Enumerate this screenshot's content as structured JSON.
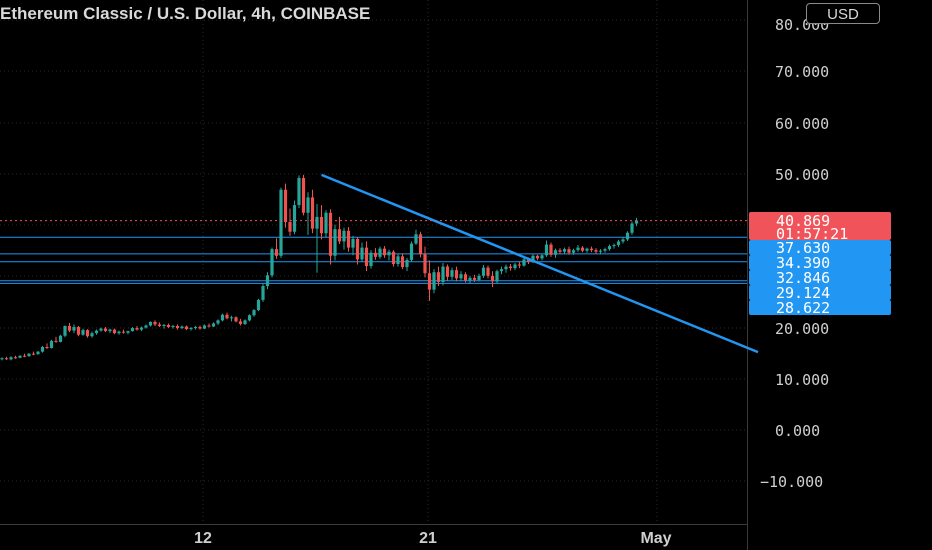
{
  "header": {
    "title": "Ethereum Classic / U.S. Dollar, 4h, COINBASE",
    "currency": "USD"
  },
  "colors": {
    "background": "#000000",
    "grid": "#2a2a2a",
    "up": "#26a69a",
    "down": "#ef5350",
    "trendline": "#2196f3",
    "level_line": "#2196f3",
    "price_tag": "#f0545a",
    "level_tag": "#2196f3"
  },
  "chart_data": {
    "type": "candlestick",
    "y_axis": {
      "ticks": [
        "80.000",
        "70.000",
        "60.000",
        "50.000",
        "20.000",
        "10.000",
        "0.000",
        "−10.000"
      ],
      "tick_values": [
        80,
        70,
        60,
        50,
        20,
        10,
        0,
        -10
      ],
      "ylim": [
        -14,
        82
      ]
    },
    "x_axis": {
      "ticks": [
        "12",
        "21",
        "May"
      ],
      "tick_index": [
        44,
        94,
        147
      ]
    },
    "last_price": {
      "value": 40.869,
      "label": "40.869",
      "countdown": "01:57:21"
    },
    "levels": [
      {
        "value": 37.63,
        "label": "37.630"
      },
      {
        "value": 34.39,
        "label": "34.390"
      },
      {
        "value": 32.846,
        "label": "32.846"
      },
      {
        "value": 29.124,
        "label": "29.124"
      },
      {
        "value": 28.622,
        "label": "28.622"
      }
    ],
    "trendline": {
      "start": {
        "index": 71,
        "value": 49.8
      },
      "end": {
        "index": 168,
        "value": 15.2
      }
    },
    "candles": [
      [
        13.9,
        14.2,
        13.6,
        14.0
      ],
      [
        14.0,
        14.3,
        13.7,
        13.8
      ],
      [
        13.8,
        14.4,
        13.6,
        14.2
      ],
      [
        14.2,
        14.5,
        13.9,
        14.1
      ],
      [
        14.1,
        14.6,
        14.0,
        14.5
      ],
      [
        14.5,
        14.9,
        14.2,
        14.4
      ],
      [
        14.4,
        15.0,
        14.3,
        14.9
      ],
      [
        14.9,
        15.3,
        14.6,
        14.8
      ],
      [
        14.8,
        15.4,
        14.7,
        15.3
      ],
      [
        15.3,
        16.4,
        15.1,
        16.2
      ],
      [
        16.2,
        16.9,
        15.8,
        16.0
      ],
      [
        16.0,
        17.6,
        15.9,
        17.4
      ],
      [
        17.4,
        18.2,
        17.0,
        17.2
      ],
      [
        17.2,
        18.6,
        17.1,
        18.4
      ],
      [
        18.4,
        20.4,
        18.1,
        20.3
      ],
      [
        20.3,
        20.9,
        19.1,
        19.4
      ],
      [
        19.4,
        20.6,
        18.9,
        20.1
      ],
      [
        20.1,
        20.3,
        18.3,
        18.6
      ],
      [
        18.6,
        19.8,
        18.4,
        19.5
      ],
      [
        19.5,
        19.7,
        18.0,
        18.3
      ],
      [
        18.3,
        19.2,
        18.0,
        18.9
      ],
      [
        18.9,
        19.6,
        18.6,
        19.4
      ],
      [
        19.4,
        20.0,
        19.2,
        19.8
      ],
      [
        19.8,
        20.1,
        19.1,
        19.3
      ],
      [
        19.3,
        19.8,
        18.9,
        19.6
      ],
      [
        19.6,
        19.8,
        18.7,
        18.9
      ],
      [
        18.9,
        19.4,
        18.6,
        19.2
      ],
      [
        19.2,
        19.6,
        18.8,
        19.0
      ],
      [
        19.0,
        19.4,
        18.7,
        19.3
      ],
      [
        19.3,
        20.1,
        19.2,
        19.9
      ],
      [
        19.9,
        20.3,
        19.4,
        19.6
      ],
      [
        19.6,
        20.2,
        19.3,
        20.0
      ],
      [
        20.0,
        20.6,
        19.8,
        20.4
      ],
      [
        20.4,
        21.2,
        20.2,
        21.1
      ],
      [
        21.1,
        21.4,
        20.3,
        20.6
      ],
      [
        20.6,
        21.0,
        20.1,
        20.3
      ],
      [
        20.3,
        20.7,
        19.8,
        20.5
      ],
      [
        20.5,
        20.8,
        19.9,
        20.1
      ],
      [
        20.1,
        20.5,
        19.8,
        20.3
      ],
      [
        20.3,
        20.6,
        19.6,
        19.9
      ],
      [
        19.9,
        20.4,
        19.7,
        20.2
      ],
      [
        20.2,
        20.4,
        19.5,
        19.7
      ],
      [
        19.7,
        20.1,
        19.4,
        19.9
      ],
      [
        19.9,
        20.3,
        19.6,
        20.1
      ],
      [
        20.1,
        20.4,
        19.6,
        19.8
      ],
      [
        19.8,
        20.6,
        19.7,
        20.4
      ],
      [
        20.4,
        20.8,
        20.0,
        20.2
      ],
      [
        20.2,
        21.0,
        20.1,
        20.8
      ],
      [
        20.8,
        21.6,
        20.5,
        21.4
      ],
      [
        21.4,
        22.7,
        21.2,
        22.5
      ],
      [
        22.5,
        22.9,
        21.6,
        21.8
      ],
      [
        21.8,
        22.3,
        21.2,
        22.0
      ],
      [
        22.0,
        22.2,
        21.0,
        21.2
      ],
      [
        21.2,
        21.7,
        20.4,
        20.7
      ],
      [
        20.7,
        21.6,
        20.5,
        21.4
      ],
      [
        21.4,
        22.6,
        21.2,
        22.4
      ],
      [
        22.4,
        23.6,
        22.1,
        23.4
      ],
      [
        23.4,
        25.6,
        23.2,
        25.4
      ],
      [
        25.4,
        28.5,
        25.0,
        28.1
      ],
      [
        28.1,
        30.8,
        27.5,
        30.2
      ],
      [
        30.2,
        35.6,
        29.8,
        35.3
      ],
      [
        35.3,
        37.4,
        33.4,
        34.0
      ],
      [
        34.0,
        47.3,
        33.6,
        46.9
      ],
      [
        46.9,
        48.1,
        39.5,
        40.6
      ],
      [
        40.6,
        43.2,
        37.9,
        38.7
      ],
      [
        38.7,
        44.8,
        38.2,
        43.9
      ],
      [
        43.9,
        49.7,
        43.3,
        49.2
      ],
      [
        49.2,
        49.8,
        41.9,
        42.4
      ],
      [
        42.4,
        46.4,
        38.1,
        45.4
      ],
      [
        45.4,
        46.9,
        38.4,
        39.3
      ],
      [
        39.3,
        44.1,
        30.7,
        41.6
      ],
      [
        41.6,
        43.9,
        37.2,
        38.4
      ],
      [
        38.4,
        42.9,
        37.6,
        42.4
      ],
      [
        42.4,
        43.1,
        32.3,
        34.0
      ],
      [
        34.0,
        40.1,
        33.1,
        39.2
      ],
      [
        39.2,
        41.6,
        36.3,
        36.8
      ],
      [
        36.8,
        39.5,
        35.2,
        38.9
      ],
      [
        38.9,
        39.6,
        34.8,
        35.6
      ],
      [
        35.6,
        37.9,
        34.1,
        37.3
      ],
      [
        37.3,
        37.6,
        32.3,
        33.3
      ],
      [
        33.3,
        36.6,
        32.9,
        35.6
      ],
      [
        35.6,
        36.8,
        31.0,
        32.0
      ],
      [
        32.0,
        35.1,
        31.5,
        34.6
      ],
      [
        34.6,
        35.5,
        33.2,
        33.8
      ],
      [
        33.8,
        35.8,
        33.4,
        35.4
      ],
      [
        35.4,
        35.9,
        33.6,
        34.1
      ],
      [
        34.1,
        35.2,
        33.1,
        34.8
      ],
      [
        34.8,
        35.1,
        31.9,
        32.4
      ],
      [
        32.4,
        34.4,
        31.9,
        33.9
      ],
      [
        33.9,
        34.5,
        31.4,
        31.8
      ],
      [
        31.8,
        33.6,
        31.0,
        33.2
      ],
      [
        33.2,
        36.8,
        32.8,
        36.4
      ],
      [
        36.4,
        39.1,
        36.1,
        38.2
      ],
      [
        38.2,
        38.7,
        33.7,
        34.3
      ],
      [
        34.3,
        35.8,
        29.8,
        30.6
      ],
      [
        30.6,
        33.1,
        25.2,
        27.4
      ],
      [
        27.4,
        31.4,
        26.7,
        30.8
      ],
      [
        30.8,
        31.9,
        28.1,
        28.9
      ],
      [
        28.9,
        32.6,
        28.2,
        31.9
      ],
      [
        31.9,
        32.3,
        29.1,
        29.9
      ],
      [
        29.9,
        31.7,
        29.3,
        31.2
      ],
      [
        31.2,
        31.9,
        29.0,
        29.6
      ],
      [
        29.6,
        31.0,
        29.0,
        30.4
      ],
      [
        30.4,
        30.8,
        28.8,
        29.2
      ],
      [
        29.2,
        30.1,
        28.5,
        29.7
      ],
      [
        29.7,
        30.3,
        28.9,
        29.3
      ],
      [
        29.3,
        30.5,
        29.0,
        30.1
      ],
      [
        30.1,
        32.2,
        29.7,
        31.7
      ],
      [
        31.7,
        32.1,
        29.6,
        30.1
      ],
      [
        30.1,
        31.0,
        27.9,
        29.0
      ],
      [
        29.0,
        31.3,
        28.6,
        31.0
      ],
      [
        31.0,
        31.9,
        30.4,
        31.4
      ],
      [
        31.4,
        32.3,
        30.7,
        31.9
      ],
      [
        31.9,
        32.4,
        31.1,
        31.6
      ],
      [
        31.6,
        32.6,
        31.2,
        32.3
      ],
      [
        32.3,
        32.8,
        31.6,
        32.1
      ],
      [
        32.1,
        33.6,
        31.9,
        33.3
      ],
      [
        33.3,
        33.7,
        32.4,
        32.9
      ],
      [
        32.9,
        34.3,
        32.6,
        34.0
      ],
      [
        34.0,
        34.2,
        33.1,
        33.5
      ],
      [
        33.5,
        34.4,
        33.1,
        34.1
      ],
      [
        34.1,
        37.0,
        33.8,
        36.2
      ],
      [
        36.2,
        36.6,
        33.8,
        34.2
      ],
      [
        34.2,
        35.4,
        33.6,
        35.1
      ],
      [
        35.1,
        35.5,
        34.4,
        34.8
      ],
      [
        34.8,
        35.6,
        34.3,
        35.3
      ],
      [
        35.3,
        35.8,
        34.2,
        34.6
      ],
      [
        34.6,
        35.4,
        34.2,
        35.1
      ],
      [
        35.1,
        36.1,
        34.8,
        35.6
      ],
      [
        35.6,
        35.9,
        34.7,
        35.0
      ],
      [
        35.0,
        35.6,
        34.6,
        35.4
      ],
      [
        35.4,
        35.8,
        34.7,
        35.1
      ],
      [
        35.1,
        35.5,
        34.4,
        34.8
      ],
      [
        34.8,
        35.3,
        34.3,
        35.0
      ],
      [
        35.0,
        35.6,
        34.6,
        35.3
      ],
      [
        35.3,
        36.2,
        35.0,
        35.9
      ],
      [
        35.9,
        36.4,
        35.4,
        36.1
      ],
      [
        36.1,
        37.1,
        35.7,
        36.8
      ],
      [
        36.8,
        37.6,
        36.4,
        37.2
      ],
      [
        37.2,
        38.8,
        36.9,
        38.5
      ],
      [
        38.5,
        40.7,
        38.1,
        40.3
      ],
      [
        40.3,
        41.4,
        39.8,
        40.9
      ]
    ]
  }
}
